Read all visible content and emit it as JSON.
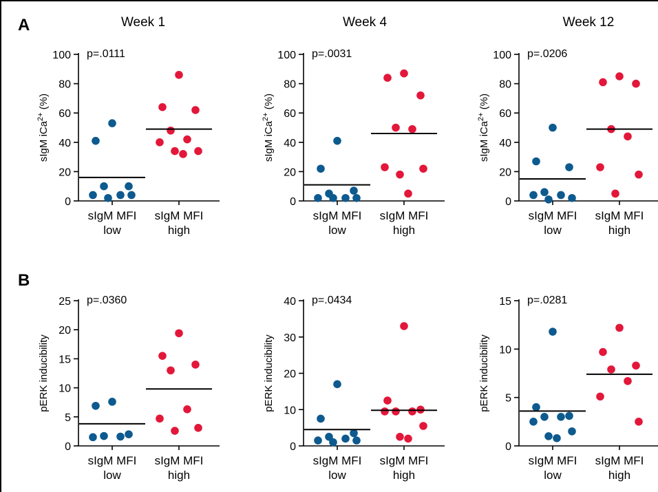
{
  "panels": {
    "a_label": "A",
    "b_label": "B"
  },
  "colors": {
    "low": "#0d5a8f",
    "high": "#e2173a",
    "axis": "#000000"
  },
  "categories": [
    {
      "line1": "sIgM MFI",
      "line2": "low"
    },
    {
      "line1": "sIgM MFI",
      "line2": "high"
    }
  ],
  "chart_data": [
    {
      "type": "scatter",
      "row": "A",
      "title": "Week 1",
      "ylabel_main": "sIgM iCa",
      "ylabel_sup": "2+",
      "ylabel_tail": " (%)",
      "ylim": [
        0,
        100
      ],
      "yticks": [
        0,
        20,
        40,
        60,
        80,
        100
      ],
      "pvalue": "p=.0111",
      "categories": [
        "sIgM MFI low",
        "sIgM MFI high"
      ],
      "series": [
        {
          "values": [
            53,
            41,
            10,
            10,
            4,
            4,
            2,
            4
          ],
          "median": 16
        },
        {
          "values": [
            86,
            64,
            62,
            48,
            42,
            40,
            32,
            34,
            34
          ],
          "median": 49
        }
      ]
    },
    {
      "type": "scatter",
      "row": "A",
      "title": "Week 4",
      "ylabel_main": "sIgM iCa",
      "ylabel_sup": "2+",
      "ylabel_tail": " (%)",
      "ylim": [
        0,
        100
      ],
      "yticks": [
        0,
        20,
        40,
        60,
        80,
        100
      ],
      "pvalue": "p=.0031",
      "categories": [
        "sIgM MFI low",
        "sIgM MFI high"
      ],
      "series": [
        {
          "values": [
            41,
            22,
            7,
            5,
            2,
            2,
            2,
            2
          ],
          "median": 11
        },
        {
          "values": [
            87,
            84,
            72,
            50,
            49,
            23,
            22,
            18,
            5
          ],
          "median": 46
        }
      ]
    },
    {
      "type": "scatter",
      "row": "A",
      "title": "Week 12",
      "ylabel_main": "sIgM iCa",
      "ylabel_sup": "2+",
      "ylabel_tail": " (%)",
      "ylim": [
        0,
        100
      ],
      "yticks": [
        0,
        20,
        40,
        60,
        80,
        100
      ],
      "pvalue": "p=.0206",
      "categories": [
        "sIgM MFI low",
        "sIgM MFI high"
      ],
      "series": [
        {
          "values": [
            50,
            27,
            23,
            6,
            4,
            4,
            1,
            2
          ],
          "median": 15
        },
        {
          "values": [
            85,
            81,
            80,
            49,
            44,
            23,
            18,
            5
          ],
          "median": 49
        }
      ]
    },
    {
      "type": "scatter",
      "row": "B",
      "title": "",
      "ylabel_main": "pERK inducibility",
      "ylabel_sup": "",
      "ylabel_tail": "",
      "ylim": [
        0,
        25
      ],
      "yticks": [
        0,
        5,
        10,
        15,
        20,
        25
      ],
      "pvalue": "p=.0360",
      "categories": [
        "sIgM MFI low",
        "sIgM MFI high"
      ],
      "series": [
        {
          "values": [
            7.6,
            6.9,
            2.0,
            1.7,
            1.5,
            1.6
          ],
          "median": 3.8
        },
        {
          "values": [
            19.4,
            15.5,
            14.0,
            13.0,
            6.3,
            4.7,
            3.1,
            2.6
          ],
          "median": 9.8
        }
      ]
    },
    {
      "type": "scatter",
      "row": "B",
      "title": "",
      "ylabel_main": "pERK inducibility",
      "ylabel_sup": "",
      "ylabel_tail": "",
      "ylim": [
        0,
        40
      ],
      "yticks": [
        0,
        10,
        20,
        30,
        40
      ],
      "pvalue": "p=.0434",
      "categories": [
        "sIgM MFI low",
        "sIgM MFI high"
      ],
      "series": [
        {
          "values": [
            17,
            7.5,
            3.5,
            2.5,
            2.0,
            1.5,
            1.5,
            1.0
          ],
          "median": 4.5
        },
        {
          "values": [
            33,
            12.5,
            10,
            9.5,
            9.5,
            9.5,
            5.5,
            2.5,
            2.0
          ],
          "median": 9.8
        }
      ]
    },
    {
      "type": "scatter",
      "row": "B",
      "title": "",
      "ylabel_main": "pERK inducibility",
      "ylabel_sup": "",
      "ylabel_tail": "",
      "ylim": [
        0,
        15
      ],
      "yticks": [
        0,
        5,
        10,
        15
      ],
      "pvalue": "p=.0281",
      "categories": [
        "sIgM MFI low",
        "sIgM MFI high"
      ],
      "series": [
        {
          "values": [
            11.8,
            4.0,
            3.1,
            3.0,
            3.0,
            2.5,
            1.5,
            1.0,
            0.8
          ],
          "median": 3.6
        },
        {
          "values": [
            12.2,
            9.7,
            8.3,
            7.9,
            6.7,
            5.1,
            2.5
          ],
          "median": 7.4
        }
      ]
    }
  ]
}
